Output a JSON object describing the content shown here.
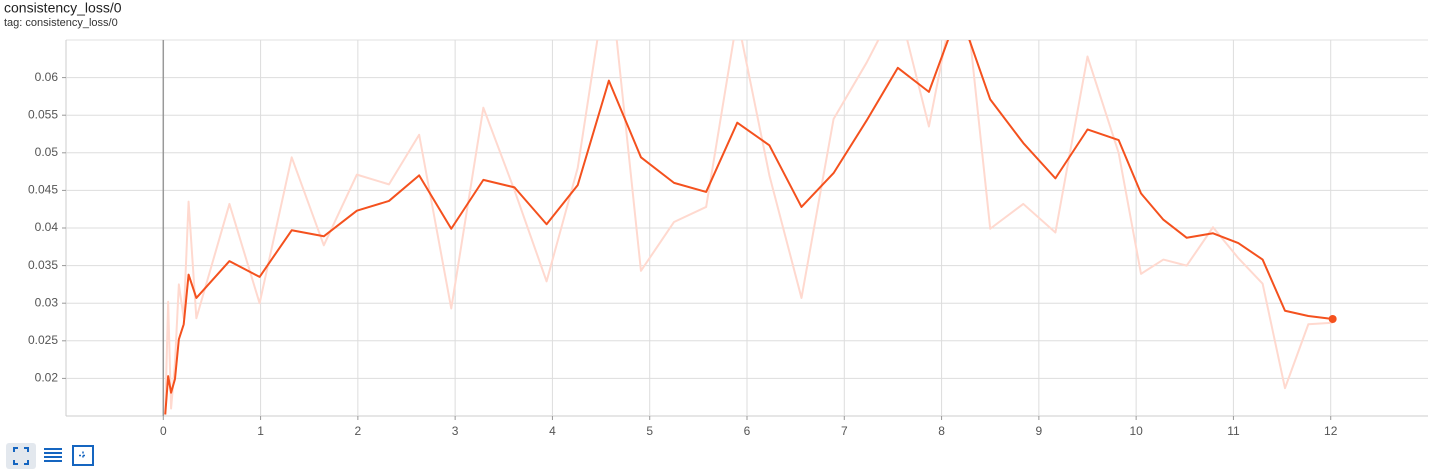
{
  "chart_data": {
    "type": "line",
    "title": "consistency_loss/0",
    "subtitle": "tag: consistency_loss/0",
    "x": [
      0.02,
      0.05,
      0.08,
      0.12,
      0.16,
      0.21,
      0.26,
      0.34,
      0.68,
      0.99,
      1.32,
      1.65,
      1.99,
      2.32,
      2.63,
      2.96,
      3.29,
      3.61,
      3.94,
      4.26,
      4.58,
      4.91,
      5.25,
      5.58,
      5.9,
      6.23,
      6.56,
      6.89,
      7.23,
      7.55,
      7.87,
      8.12,
      8.27,
      8.5,
      8.84,
      9.17,
      9.5,
      9.82,
      10.05,
      10.28,
      10.52,
      10.79,
      11.05,
      11.3,
      11.53,
      11.77,
      12.02
    ],
    "series": [
      {
        "color": "#ffd9cf",
        "values": [
          0.0152,
          0.0302,
          0.016,
          0.022,
          0.0325,
          0.028,
          0.0435,
          0.028,
          0.0432,
          0.03,
          0.0494,
          0.0377,
          0.0471,
          0.0458,
          0.0524,
          0.0293,
          0.056,
          0.045,
          0.0329,
          0.048,
          0.075,
          0.0343,
          0.0408,
          0.0428,
          0.068,
          0.047,
          0.0307,
          0.0545,
          0.062,
          0.07,
          0.0535,
          0.07,
          0.068,
          0.0399,
          0.0432,
          0.0394,
          0.0628,
          0.05,
          0.0339,
          0.0358,
          0.035,
          0.0401,
          0.036,
          0.0326,
          0.0187,
          0.0272,
          0.0274
        ]
      },
      {
        "color": "#f4511e",
        "values": [
          0.0152,
          0.0203,
          0.0181,
          0.0199,
          0.0252,
          0.0272,
          0.0338,
          0.0307,
          0.0356,
          0.0335,
          0.0397,
          0.0389,
          0.0423,
          0.0436,
          0.047,
          0.0399,
          0.0464,
          0.0454,
          0.0405,
          0.0457,
          0.0596,
          0.0494,
          0.046,
          0.0448,
          0.054,
          0.051,
          0.0428,
          0.0473,
          0.0543,
          0.0613,
          0.0581,
          0.0669,
          0.0656,
          0.0571,
          0.0513,
          0.0466,
          0.0531,
          0.0517,
          0.0446,
          0.0411,
          0.0387,
          0.0393,
          0.038,
          0.0358,
          0.029,
          0.0283,
          0.0279
        ]
      }
    ],
    "xlim": [
      -1,
      13
    ],
    "xticks": [
      0,
      1,
      2,
      3,
      4,
      5,
      6,
      7,
      8,
      9,
      10,
      11,
      12
    ],
    "ylim": [
      0.015,
      0.065
    ],
    "yticks": [
      0.02,
      0.025,
      0.03,
      0.035,
      0.04,
      0.045,
      0.05,
      0.055,
      0.06
    ],
    "grid": true
  }
}
